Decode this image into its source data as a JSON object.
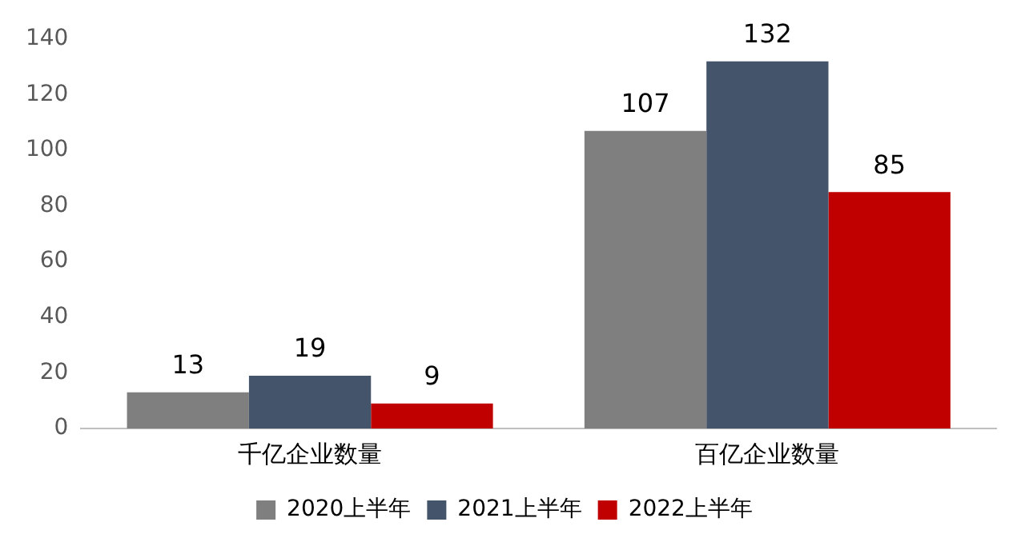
{
  "chart_data": {
    "type": "bar",
    "categories": [
      "千亿企业数量",
      "百亿企业数量"
    ],
    "series": [
      {
        "name": "2020上半年",
        "color": "#7f7f7f",
        "values": [
          13,
          107
        ]
      },
      {
        "name": "2021上半年",
        "color": "#44546a",
        "values": [
          19,
          132
        ]
      },
      {
        "name": "2022上半年",
        "color": "#c00000",
        "values": [
          9,
          85
        ]
      }
    ],
    "ylim": [
      0,
      140
    ],
    "yticks": [
      0,
      20,
      40,
      60,
      80,
      100,
      120,
      140
    ],
    "grid": false,
    "legend": "bottom",
    "data_labels": true
  }
}
